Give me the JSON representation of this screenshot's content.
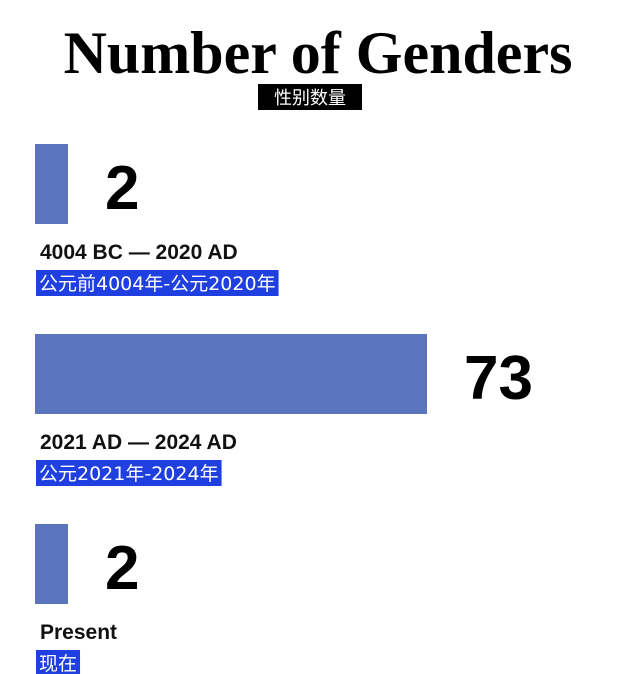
{
  "chart_data": {
    "type": "bar",
    "orientation": "horizontal",
    "title": "Number of Genders",
    "subtitle": "性别数量",
    "categories": [
      "4004 BC — 2020 AD",
      "2021 AD — 2024 AD",
      "Present"
    ],
    "category_subtitles": [
      "公元前4004年-公元2020年",
      "公元2021年-2024年",
      "现在"
    ],
    "values": [
      2,
      73,
      2
    ],
    "xlim": [
      0,
      73
    ],
    "grid": false,
    "bar_color": "#5a75bd",
    "subtitle_highlight_color": "#1f3fe0"
  }
}
